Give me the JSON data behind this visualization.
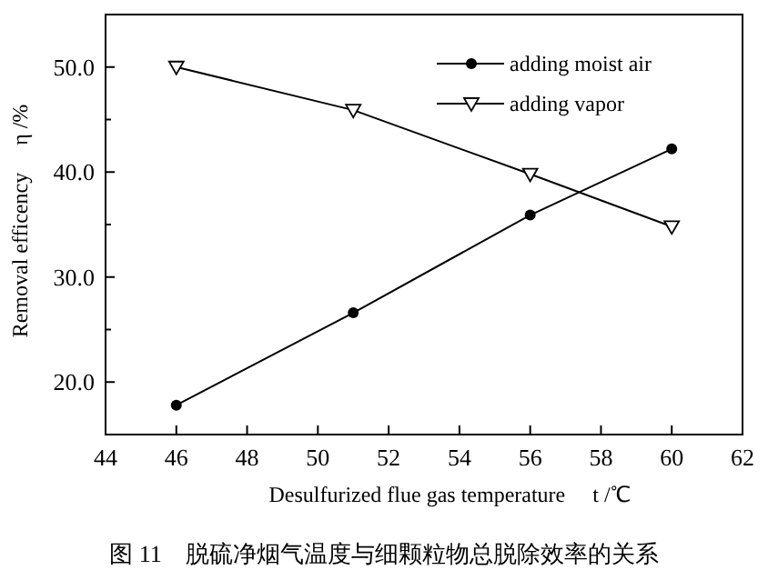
{
  "chart_data": {
    "type": "line",
    "title": "图 11　脱硫净烟气温度与细颗粒物总脱除效率的关系",
    "xlabel": "Desulfurized flue gas temperature　 t /℃",
    "ylabel": "Removal efficency　 η /%",
    "x": [
      46,
      51,
      56,
      60
    ],
    "series": [
      {
        "name": "adding moist air",
        "color": "#000000",
        "marker": "circle",
        "values": [
          17.8,
          26.6,
          35.9,
          42.2
        ]
      },
      {
        "name": "adding vapor",
        "color": "#000000",
        "marker": "triangle",
        "values": [
          50.0,
          45.9,
          39.8,
          34.8
        ]
      }
    ],
    "xlim": [
      44,
      62
    ],
    "xticks": [
      44,
      46,
      48,
      50,
      52,
      54,
      56,
      58,
      60,
      62
    ],
    "ylim": [
      15,
      55
    ],
    "yticks": [
      {
        "value": 20,
        "label": "20.0"
      },
      {
        "value": 25,
        "label": null
      },
      {
        "value": 30,
        "label": "30.0"
      },
      {
        "value": 35,
        "label": null
      },
      {
        "value": 40,
        "label": "40.0"
      },
      {
        "value": 45,
        "label": null
      },
      {
        "value": 50,
        "label": "50.0"
      }
    ],
    "legend": "top right",
    "grid": false,
    "line_style": "solid"
  }
}
